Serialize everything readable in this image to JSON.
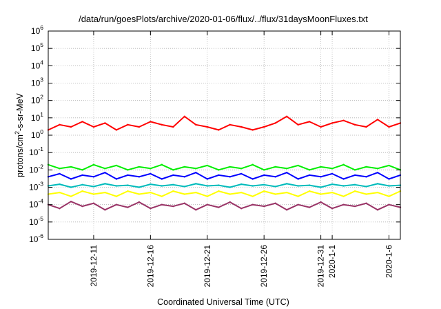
{
  "chart_data": {
    "type": "line",
    "title": "/data/run/goesPlots/archive/2020-01-06/flux/../flux/31daysMoonFluxes.txt",
    "xlabel": "Coordinated Universal Time (UTC)",
    "ylabel_base": "protons/cm",
    "ylabel_exp": "2",
    "ylabel_rest": "-s-sr-MeV",
    "yscale": "log",
    "ylim": [
      1e-06,
      1000000.0
    ],
    "y_ticks": [
      {
        "value": 1e-06,
        "base": "10",
        "exp": "-6"
      },
      {
        "value": 1e-05,
        "base": "10",
        "exp": "-5"
      },
      {
        "value": 0.0001,
        "base": "10",
        "exp": "-4"
      },
      {
        "value": 0.001,
        "base": "10",
        "exp": "-3"
      },
      {
        "value": 0.01,
        "base": "10",
        "exp": "-2"
      },
      {
        "value": 0.1,
        "base": "10",
        "exp": "-1"
      },
      {
        "value": 1,
        "base": "10",
        "exp": "0"
      },
      {
        "value": 10,
        "base": "10",
        "exp": "1"
      },
      {
        "value": 100,
        "base": "10",
        "exp": "2"
      },
      {
        "value": 1000,
        "base": "10",
        "exp": "3"
      },
      {
        "value": 10000,
        "base": "10",
        "exp": "4"
      },
      {
        "value": 100000,
        "base": "10",
        "exp": "5"
      },
      {
        "value": 1000000,
        "base": "10",
        "exp": "6"
      }
    ],
    "xlim": [
      "2019-12-07",
      "2020-01-07"
    ],
    "x_ticks": [
      {
        "value": "2019-12-11",
        "label": "2019-12-11"
      },
      {
        "value": "2019-12-16",
        "label": "2019-12-16"
      },
      {
        "value": "2019-12-21",
        "label": "2019-12-21"
      },
      {
        "value": "2019-12-26",
        "label": "2019-12-26"
      },
      {
        "value": "2019-12-31",
        "label": "2019-12-31"
      },
      {
        "value": "2020-01-01",
        "label": "2020-1-1"
      },
      {
        "value": "2020-01-06",
        "label": "2020-1-6"
      }
    ],
    "grid": true,
    "legend": "none",
    "series": [
      {
        "color": "#ff0000",
        "x": [
          "2019-12-07",
          "2019-12-08",
          "2019-12-09",
          "2019-12-10",
          "2019-12-11",
          "2019-12-12",
          "2019-12-13",
          "2019-12-14",
          "2019-12-15",
          "2019-12-16",
          "2019-12-17",
          "2019-12-18",
          "2019-12-19",
          "2019-12-20",
          "2019-12-21",
          "2019-12-22",
          "2019-12-23",
          "2019-12-24",
          "2019-12-25",
          "2019-12-26",
          "2019-12-27",
          "2019-12-28",
          "2019-12-29",
          "2019-12-30",
          "2019-12-31",
          "2020-01-01",
          "2020-01-02",
          "2020-01-03",
          "2020-01-04",
          "2020-01-05",
          "2020-01-06",
          "2020-01-07"
        ],
        "values": [
          2,
          4,
          3,
          6,
          3,
          5,
          2,
          4,
          3,
          6,
          4,
          3,
          12,
          4,
          3,
          2,
          4,
          3,
          2,
          3,
          5,
          12,
          4,
          6,
          3,
          5,
          7,
          4,
          3,
          8,
          3,
          5
        ]
      },
      {
        "color": "#00ee00",
        "x": [
          "2019-12-07",
          "2019-12-08",
          "2019-12-09",
          "2019-12-10",
          "2019-12-11",
          "2019-12-12",
          "2019-12-13",
          "2019-12-14",
          "2019-12-15",
          "2019-12-16",
          "2019-12-17",
          "2019-12-18",
          "2019-12-19",
          "2019-12-20",
          "2019-12-21",
          "2019-12-22",
          "2019-12-23",
          "2019-12-24",
          "2019-12-25",
          "2019-12-26",
          "2019-12-27",
          "2019-12-28",
          "2019-12-29",
          "2019-12-30",
          "2019-12-31",
          "2020-01-01",
          "2020-01-02",
          "2020-01-03",
          "2020-01-04",
          "2020-01-05",
          "2020-01-06",
          "2020-01-07"
        ],
        "values": [
          0.02,
          0.012,
          0.015,
          0.01,
          0.02,
          0.012,
          0.018,
          0.01,
          0.015,
          0.012,
          0.02,
          0.01,
          0.015,
          0.012,
          0.018,
          0.01,
          0.015,
          0.012,
          0.02,
          0.01,
          0.015,
          0.012,
          0.018,
          0.01,
          0.015,
          0.012,
          0.02,
          0.01,
          0.015,
          0.012,
          0.018,
          0.01
        ]
      },
      {
        "color": "#0000ff",
        "x": [
          "2019-12-07",
          "2019-12-08",
          "2019-12-09",
          "2019-12-10",
          "2019-12-11",
          "2019-12-12",
          "2019-12-13",
          "2019-12-14",
          "2019-12-15",
          "2019-12-16",
          "2019-12-17",
          "2019-12-18",
          "2019-12-19",
          "2019-12-20",
          "2019-12-21",
          "2019-12-22",
          "2019-12-23",
          "2019-12-24",
          "2019-12-25",
          "2019-12-26",
          "2019-12-27",
          "2019-12-28",
          "2019-12-29",
          "2019-12-30",
          "2019-12-31",
          "2020-01-01",
          "2020-01-02",
          "2020-01-03",
          "2020-01-04",
          "2020-01-05",
          "2020-01-06",
          "2020-01-07"
        ],
        "values": [
          0.004,
          0.006,
          0.003,
          0.005,
          0.004,
          0.007,
          0.003,
          0.005,
          0.004,
          0.006,
          0.003,
          0.005,
          0.004,
          0.007,
          0.003,
          0.005,
          0.004,
          0.006,
          0.003,
          0.005,
          0.004,
          0.007,
          0.003,
          0.005,
          0.004,
          0.006,
          0.003,
          0.005,
          0.004,
          0.007,
          0.003,
          0.005
        ]
      },
      {
        "color": "#00bbbb",
        "x": [
          "2019-12-07",
          "2019-12-08",
          "2019-12-09",
          "2019-12-10",
          "2019-12-11",
          "2019-12-12",
          "2019-12-13",
          "2019-12-14",
          "2019-12-15",
          "2019-12-16",
          "2019-12-17",
          "2019-12-18",
          "2019-12-19",
          "2019-12-20",
          "2019-12-21",
          "2019-12-22",
          "2019-12-23",
          "2019-12-24",
          "2019-12-25",
          "2019-12-26",
          "2019-12-27",
          "2019-12-28",
          "2019-12-29",
          "2019-12-30",
          "2019-12-31",
          "2020-01-01",
          "2020-01-02",
          "2020-01-03",
          "2020-01-04",
          "2020-01-05",
          "2020-01-06",
          "2020-01-07"
        ],
        "values": [
          0.0012,
          0.0015,
          0.001,
          0.0014,
          0.0011,
          0.0016,
          0.0012,
          0.0013,
          0.001,
          0.0015,
          0.0012,
          0.0014,
          0.0011,
          0.0016,
          0.0012,
          0.0013,
          0.001,
          0.0015,
          0.0012,
          0.0014,
          0.0011,
          0.0016,
          0.0012,
          0.0013,
          0.001,
          0.0015,
          0.0012,
          0.0014,
          0.0011,
          0.0016,
          0.0012,
          0.0013
        ]
      },
      {
        "color": "#ffff00",
        "x": [
          "2019-12-07",
          "2019-12-08",
          "2019-12-09",
          "2019-12-10",
          "2019-12-11",
          "2019-12-12",
          "2019-12-13",
          "2019-12-14",
          "2019-12-15",
          "2019-12-16",
          "2019-12-17",
          "2019-12-18",
          "2019-12-19",
          "2019-12-20",
          "2019-12-21",
          "2019-12-22",
          "2019-12-23",
          "2019-12-24",
          "2019-12-25",
          "2019-12-26",
          "2019-12-27",
          "2019-12-28",
          "2019-12-29",
          "2019-12-30",
          "2019-12-31",
          "2020-01-01",
          "2020-01-02",
          "2020-01-03",
          "2020-01-04",
          "2020-01-05",
          "2020-01-06",
          "2020-01-07"
        ],
        "values": [
          0.0004,
          0.0005,
          0.0003,
          0.0006,
          0.0004,
          0.0005,
          0.0003,
          0.0006,
          0.0004,
          0.0005,
          0.0003,
          0.0006,
          0.0004,
          0.0005,
          0.0003,
          0.0006,
          0.0004,
          0.0005,
          0.0003,
          0.0006,
          0.0004,
          0.0005,
          0.0003,
          0.0006,
          0.0004,
          0.0005,
          0.0003,
          0.0006,
          0.0004,
          0.0005,
          0.0003,
          0.0006
        ]
      },
      {
        "color": "#993366",
        "x": [
          "2019-12-07",
          "2019-12-08",
          "2019-12-09",
          "2019-12-10",
          "2019-12-11",
          "2019-12-12",
          "2019-12-13",
          "2019-12-14",
          "2019-12-15",
          "2019-12-16",
          "2019-12-17",
          "2019-12-18",
          "2019-12-19",
          "2019-12-20",
          "2019-12-21",
          "2019-12-22",
          "2019-12-23",
          "2019-12-24",
          "2019-12-25",
          "2019-12-26",
          "2019-12-27",
          "2019-12-28",
          "2019-12-29",
          "2019-12-30",
          "2019-12-31",
          "2020-01-01",
          "2020-01-02",
          "2020-01-03",
          "2020-01-04",
          "2020-01-05",
          "2020-01-06",
          "2020-01-07"
        ],
        "values": [
          0.0001,
          6e-05,
          0.00015,
          8e-05,
          0.00012,
          5e-05,
          0.0001,
          7e-05,
          0.00014,
          6e-05,
          0.0001,
          8e-05,
          0.00012,
          5e-05,
          0.0001,
          7e-05,
          0.00014,
          6e-05,
          0.0001,
          8e-05,
          0.00012,
          5e-05,
          0.0001,
          7e-05,
          0.00014,
          6e-05,
          0.0001,
          8e-05,
          0.00012,
          5e-05,
          0.0001,
          7e-05
        ]
      }
    ]
  }
}
